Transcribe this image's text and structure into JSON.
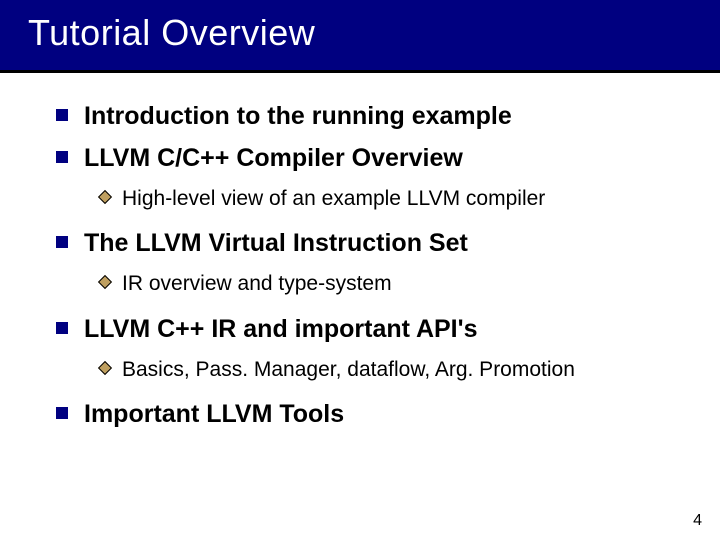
{
  "title": "Tutorial Overview",
  "items": [
    {
      "text": "Introduction to the running example",
      "sub": []
    },
    {
      "text": "LLVM C/C++ Compiler Overview",
      "sub": [
        "High-level view of an example LLVM compiler"
      ]
    },
    {
      "text": "The LLVM Virtual Instruction Set",
      "sub": [
        "IR overview and type-system"
      ]
    },
    {
      "text": "LLVM C++ IR and important API's",
      "sub": [
        "Basics, Pass. Manager, dataflow, Arg. Promotion"
      ]
    },
    {
      "text": "Important LLVM Tools",
      "sub": []
    }
  ],
  "page_number": "4",
  "colors": {
    "title_bg": "#000080",
    "title_fg": "#ffffff",
    "bullet": "#000080",
    "diamond_fill": "#c0a060",
    "text": "#000000"
  },
  "fonts": {
    "title_size_pt": 36,
    "top_size_pt": 25,
    "sub_size_pt": 21
  }
}
